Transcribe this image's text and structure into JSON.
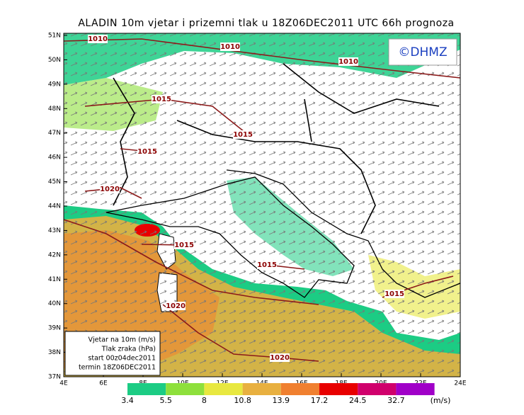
{
  "header": {
    "title": "ALADIN 10m vjetar i prizemni tlak u 18Z06DEC2011 UTC 66h prognoza",
    "logo": "©DHMZ"
  },
  "map": {
    "lat_labels": [
      "51N",
      "50N",
      "49N",
      "48N",
      "47N",
      "46N",
      "45N",
      "44N",
      "43N",
      "42N",
      "41N",
      "40N",
      "39N",
      "38N",
      "37N"
    ],
    "lon_labels": [
      "4E",
      "6E",
      "8E",
      "10E",
      "12E",
      "14E",
      "16E",
      "18E",
      "20E",
      "22E",
      "24E"
    ],
    "isobar_labels": [
      "1010",
      "1010",
      "1010",
      "1015",
      "1015",
      "1015",
      "1015",
      "1015",
      "1015",
      "1020",
      "1020",
      "1020"
    ]
  },
  "info_box": [
    "Vjetar na 10m (m/s)",
    "Tlak zraka (hPa)",
    "start 00z04dec2011",
    "termin 18Z06DEC2011"
  ],
  "legend": {
    "labels": [
      "3.4",
      "5.5",
      "8",
      "10.8",
      "13.9",
      "17.2",
      "24.5",
      "32.7"
    ],
    "unit": "(m/s)",
    "colors": [
      "#1ccc84",
      "#8ee03c",
      "#e8e840",
      "#e8b040",
      "#f08030",
      "#e80000",
      "#d0006c",
      "#a000c8"
    ]
  }
}
